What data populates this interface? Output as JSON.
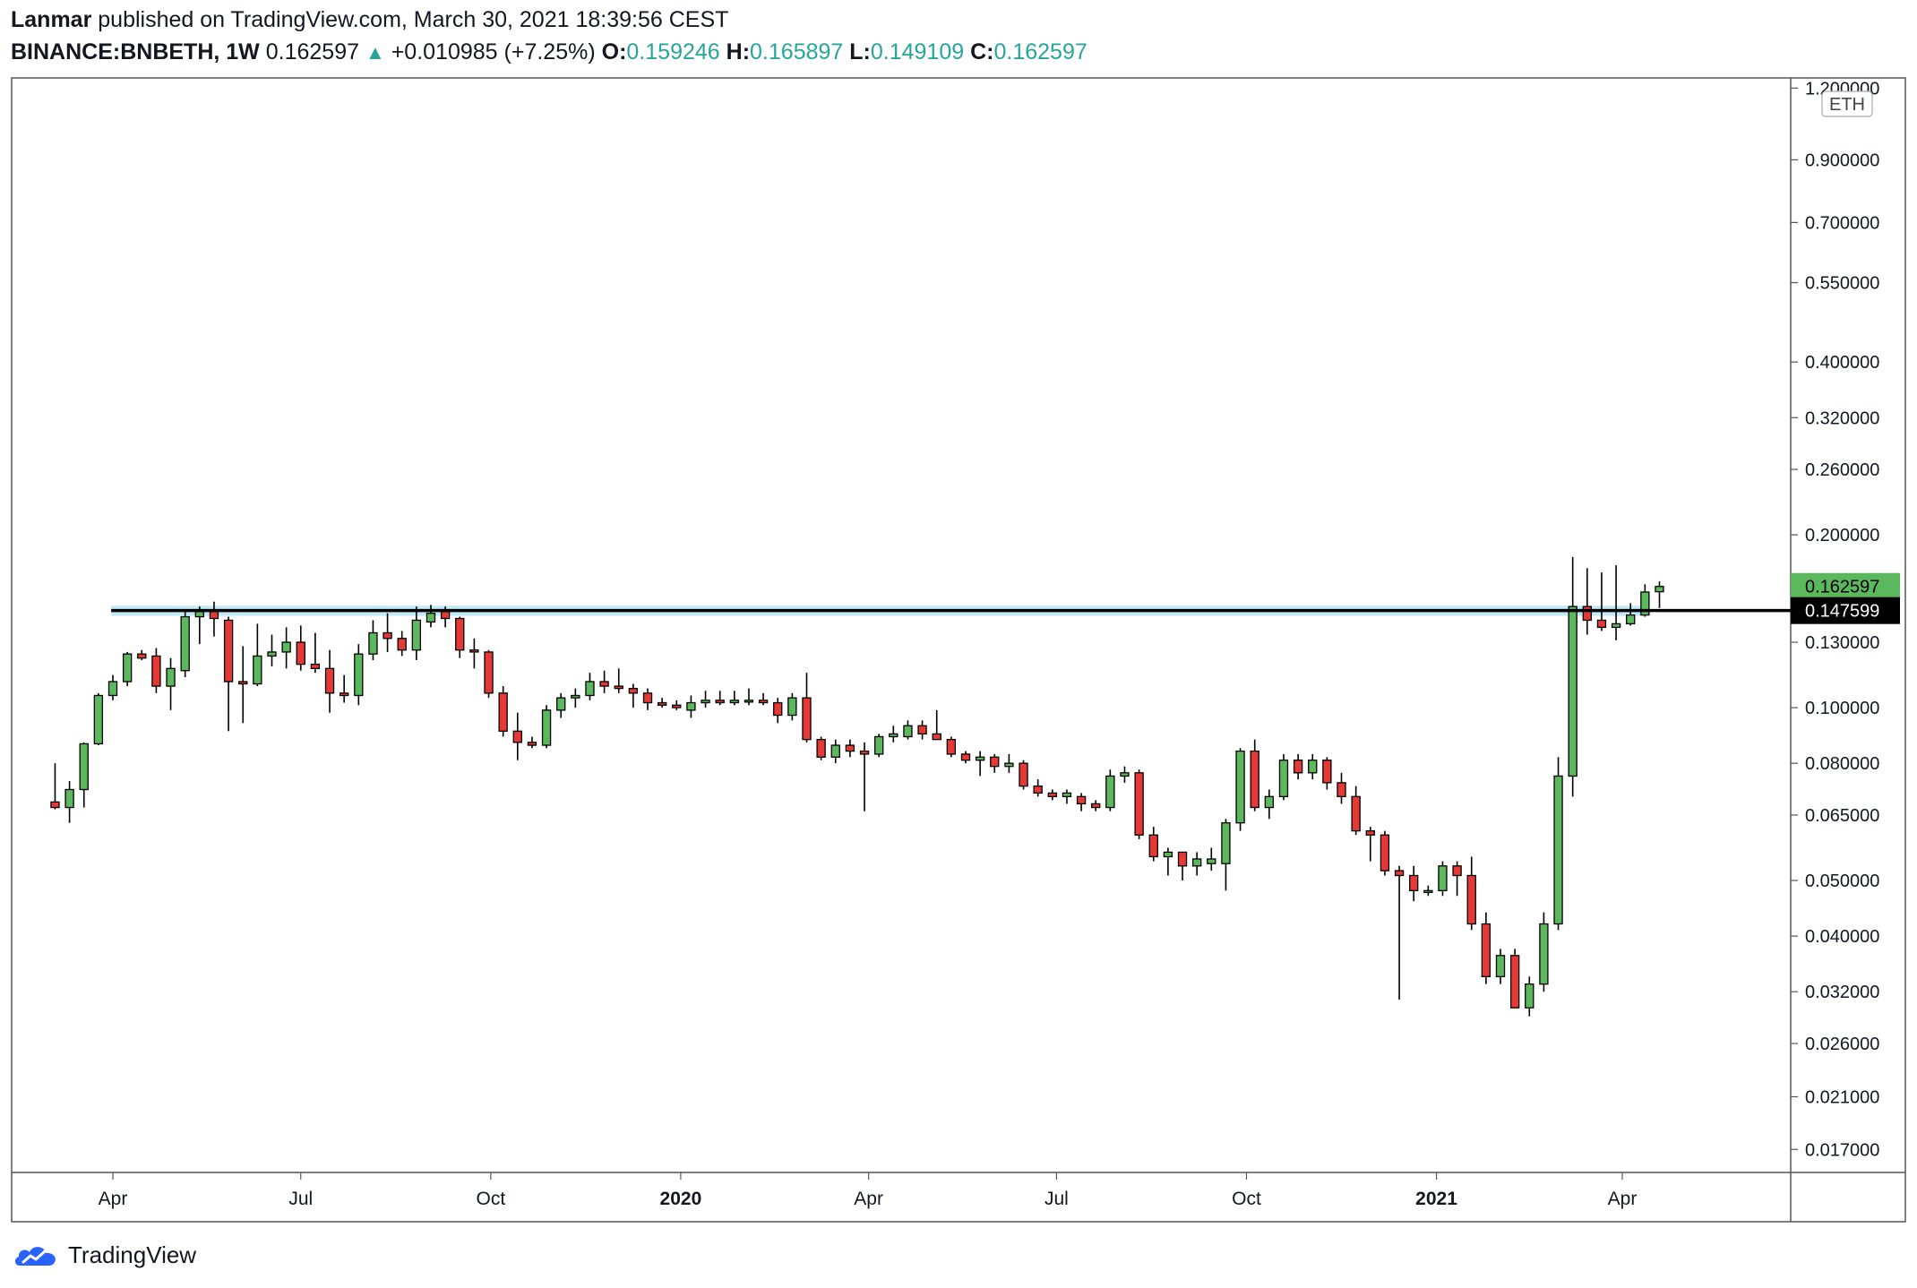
{
  "header": {
    "author": "Lanmar",
    "published_text": "published on TradingView.com, March 30, 2021 18:39:56 CEST",
    "symbol": "BINANCE:BNBETH, 1W",
    "last": "0.162597",
    "change_arrow": "▲",
    "change": "+0.010985 (+7.25%)",
    "o_label": "O:",
    "o_value": "0.159246",
    "h_label": "H:",
    "h_value": "0.165897",
    "l_label": "L:",
    "l_value": "0.149109",
    "c_label": "C:",
    "c_value": "0.162597"
  },
  "footer": {
    "brand": "TradingView",
    "logo_icon": "tradingview-cloud-icon"
  },
  "colors": {
    "up": "#5cb85c",
    "down": "#e53935",
    "wick": "#000000",
    "zone": "#b3e5f5",
    "line": "#000000",
    "last_badge": "#5cb85c",
    "line_badge": "#000000"
  },
  "chart_data": {
    "type": "candlestick",
    "title": "",
    "xlabel": "",
    "ylabel": "",
    "scale": "log",
    "currency_label": "ETH",
    "ylim": [
      0.0155,
      1.25
    ],
    "y_ticks": [
      "1.200000",
      "0.900000",
      "0.700000",
      "0.550000",
      "0.400000",
      "0.320000",
      "0.260000",
      "0.200000",
      "0.130000",
      "0.100000",
      "0.080000",
      "0.065000",
      "0.050000",
      "0.040000",
      "0.032000",
      "0.026000",
      "0.021000",
      "0.017000"
    ],
    "x_tick_labels": [
      {
        "label": "Apr",
        "date": "2019-04-01",
        "bold": false
      },
      {
        "label": "Jul",
        "date": "2019-07-01",
        "bold": false
      },
      {
        "label": "Oct",
        "date": "2019-10-01",
        "bold": false
      },
      {
        "label": "2020",
        "date": "2020-01-01",
        "bold": true
      },
      {
        "label": "Apr",
        "date": "2020-04-01",
        "bold": false
      },
      {
        "label": "Jul",
        "date": "2020-07-01",
        "bold": false
      },
      {
        "label": "Oct",
        "date": "2020-10-01",
        "bold": false
      },
      {
        "label": "2021",
        "date": "2021-01-01",
        "bold": true
      },
      {
        "label": "Apr",
        "date": "2021-04-01",
        "bold": false
      }
    ],
    "last_price_label": "0.162597",
    "horizontal_line": {
      "value": 0.147599,
      "label": "0.147599"
    },
    "support_zone": {
      "low": 0.1445,
      "high": 0.1505,
      "from": "2019-04-08",
      "to": "2021-04-12"
    },
    "candles": [
      {
        "o": 0.0685,
        "h": 0.08,
        "l": 0.0665,
        "c": 0.067
      },
      {
        "o": 0.067,
        "h": 0.0745,
        "l": 0.063,
        "c": 0.072
      },
      {
        "o": 0.072,
        "h": 0.087,
        "l": 0.067,
        "c": 0.0865
      },
      {
        "o": 0.0865,
        "h": 0.106,
        "l": 0.086,
        "c": 0.105
      },
      {
        "o": 0.105,
        "h": 0.114,
        "l": 0.103,
        "c": 0.111
      },
      {
        "o": 0.111,
        "h": 0.125,
        "l": 0.109,
        "c": 0.124
      },
      {
        "o": 0.124,
        "h": 0.126,
        "l": 0.121,
        "c": 0.122
      },
      {
        "o": 0.123,
        "h": 0.127,
        "l": 0.106,
        "c": 0.109
      },
      {
        "o": 0.109,
        "h": 0.122,
        "l": 0.099,
        "c": 0.117
      },
      {
        "o": 0.116,
        "h": 0.148,
        "l": 0.113,
        "c": 0.144
      },
      {
        "o": 0.144,
        "h": 0.15,
        "l": 0.129,
        "c": 0.147
      },
      {
        "o": 0.147,
        "h": 0.153,
        "l": 0.133,
        "c": 0.143
      },
      {
        "o": 0.142,
        "h": 0.144,
        "l": 0.091,
        "c": 0.111
      },
      {
        "o": 0.111,
        "h": 0.128,
        "l": 0.094,
        "c": 0.11
      },
      {
        "o": 0.11,
        "h": 0.14,
        "l": 0.109,
        "c": 0.123
      },
      {
        "o": 0.123,
        "h": 0.134,
        "l": 0.118,
        "c": 0.125
      },
      {
        "o": 0.125,
        "h": 0.138,
        "l": 0.117,
        "c": 0.13
      },
      {
        "o": 0.13,
        "h": 0.139,
        "l": 0.116,
        "c": 0.119
      },
      {
        "o": 0.119,
        "h": 0.135,
        "l": 0.115,
        "c": 0.117
      },
      {
        "o": 0.117,
        "h": 0.126,
        "l": 0.098,
        "c": 0.106
      },
      {
        "o": 0.106,
        "h": 0.114,
        "l": 0.102,
        "c": 0.105
      },
      {
        "o": 0.105,
        "h": 0.129,
        "l": 0.101,
        "c": 0.124
      },
      {
        "o": 0.124,
        "h": 0.142,
        "l": 0.121,
        "c": 0.135
      },
      {
        "o": 0.135,
        "h": 0.146,
        "l": 0.125,
        "c": 0.132
      },
      {
        "o": 0.132,
        "h": 0.136,
        "l": 0.123,
        "c": 0.126
      },
      {
        "o": 0.126,
        "h": 0.15,
        "l": 0.121,
        "c": 0.142
      },
      {
        "o": 0.141,
        "h": 0.151,
        "l": 0.138,
        "c": 0.146
      },
      {
        "o": 0.147,
        "h": 0.15,
        "l": 0.138,
        "c": 0.143
      },
      {
        "o": 0.143,
        "h": 0.144,
        "l": 0.122,
        "c": 0.126
      },
      {
        "o": 0.126,
        "h": 0.132,
        "l": 0.117,
        "c": 0.125
      },
      {
        "o": 0.125,
        "h": 0.126,
        "l": 0.104,
        "c": 0.106
      },
      {
        "o": 0.106,
        "h": 0.109,
        "l": 0.089,
        "c": 0.091
      },
      {
        "o": 0.091,
        "h": 0.098,
        "l": 0.081,
        "c": 0.087
      },
      {
        "o": 0.087,
        "h": 0.089,
        "l": 0.085,
        "c": 0.086
      },
      {
        "o": 0.086,
        "h": 0.101,
        "l": 0.085,
        "c": 0.099
      },
      {
        "o": 0.099,
        "h": 0.106,
        "l": 0.096,
        "c": 0.104
      },
      {
        "o": 0.104,
        "h": 0.108,
        "l": 0.1,
        "c": 0.105
      },
      {
        "o": 0.105,
        "h": 0.115,
        "l": 0.103,
        "c": 0.111
      },
      {
        "o": 0.111,
        "h": 0.116,
        "l": 0.106,
        "c": 0.109
      },
      {
        "o": 0.109,
        "h": 0.117,
        "l": 0.106,
        "c": 0.108
      },
      {
        "o": 0.108,
        "h": 0.11,
        "l": 0.1,
        "c": 0.106
      },
      {
        "o": 0.106,
        "h": 0.108,
        "l": 0.099,
        "c": 0.102
      },
      {
        "o": 0.102,
        "h": 0.104,
        "l": 0.1,
        "c": 0.101
      },
      {
        "o": 0.101,
        "h": 0.103,
        "l": 0.099,
        "c": 0.1
      },
      {
        "o": 0.099,
        "h": 0.105,
        "l": 0.096,
        "c": 0.102
      },
      {
        "o": 0.102,
        "h": 0.107,
        "l": 0.1,
        "c": 0.103
      },
      {
        "o": 0.103,
        "h": 0.107,
        "l": 0.101,
        "c": 0.102
      },
      {
        "o": 0.102,
        "h": 0.107,
        "l": 0.101,
        "c": 0.103
      },
      {
        "o": 0.103,
        "h": 0.108,
        "l": 0.101,
        "c": 0.103
      },
      {
        "o": 0.103,
        "h": 0.106,
        "l": 0.101,
        "c": 0.102
      },
      {
        "o": 0.102,
        "h": 0.104,
        "l": 0.094,
        "c": 0.097
      },
      {
        "o": 0.097,
        "h": 0.106,
        "l": 0.095,
        "c": 0.104
      },
      {
        "o": 0.104,
        "h": 0.115,
        "l": 0.087,
        "c": 0.088
      },
      {
        "o": 0.088,
        "h": 0.089,
        "l": 0.081,
        "c": 0.082
      },
      {
        "o": 0.082,
        "h": 0.088,
        "l": 0.08,
        "c": 0.086
      },
      {
        "o": 0.086,
        "h": 0.088,
        "l": 0.082,
        "c": 0.084
      },
      {
        "o": 0.084,
        "h": 0.087,
        "l": 0.066,
        "c": 0.083
      },
      {
        "o": 0.083,
        "h": 0.09,
        "l": 0.082,
        "c": 0.089
      },
      {
        "o": 0.089,
        "h": 0.093,
        "l": 0.087,
        "c": 0.09
      },
      {
        "o": 0.089,
        "h": 0.095,
        "l": 0.088,
        "c": 0.093
      },
      {
        "o": 0.093,
        "h": 0.095,
        "l": 0.088,
        "c": 0.09
      },
      {
        "o": 0.09,
        "h": 0.099,
        "l": 0.088,
        "c": 0.088
      },
      {
        "o": 0.088,
        "h": 0.089,
        "l": 0.082,
        "c": 0.083
      },
      {
        "o": 0.083,
        "h": 0.084,
        "l": 0.08,
        "c": 0.081
      },
      {
        "o": 0.081,
        "h": 0.084,
        "l": 0.076,
        "c": 0.082
      },
      {
        "o": 0.082,
        "h": 0.083,
        "l": 0.077,
        "c": 0.079
      },
      {
        "o": 0.079,
        "h": 0.083,
        "l": 0.077,
        "c": 0.08
      },
      {
        "o": 0.08,
        "h": 0.081,
        "l": 0.072,
        "c": 0.073
      },
      {
        "o": 0.073,
        "h": 0.075,
        "l": 0.07,
        "c": 0.071
      },
      {
        "o": 0.071,
        "h": 0.072,
        "l": 0.069,
        "c": 0.07
      },
      {
        "o": 0.07,
        "h": 0.072,
        "l": 0.068,
        "c": 0.071
      },
      {
        "o": 0.07,
        "h": 0.071,
        "l": 0.066,
        "c": 0.068
      },
      {
        "o": 0.068,
        "h": 0.069,
        "l": 0.066,
        "c": 0.067
      },
      {
        "o": 0.067,
        "h": 0.078,
        "l": 0.066,
        "c": 0.076
      },
      {
        "o": 0.076,
        "h": 0.079,
        "l": 0.074,
        "c": 0.077
      },
      {
        "o": 0.077,
        "h": 0.078,
        "l": 0.059,
        "c": 0.06
      },
      {
        "o": 0.06,
        "h": 0.062,
        "l": 0.054,
        "c": 0.055
      },
      {
        "o": 0.055,
        "h": 0.057,
        "l": 0.051,
        "c": 0.056
      },
      {
        "o": 0.056,
        "h": 0.056,
        "l": 0.05,
        "c": 0.053
      },
      {
        "o": 0.053,
        "h": 0.056,
        "l": 0.051,
        "c": 0.0545
      },
      {
        "o": 0.0535,
        "h": 0.057,
        "l": 0.052,
        "c": 0.0545
      },
      {
        "o": 0.0535,
        "h": 0.064,
        "l": 0.048,
        "c": 0.063
      },
      {
        "o": 0.063,
        "h": 0.085,
        "l": 0.061,
        "c": 0.084
      },
      {
        "o": 0.084,
        "h": 0.088,
        "l": 0.066,
        "c": 0.067
      },
      {
        "o": 0.067,
        "h": 0.072,
        "l": 0.064,
        "c": 0.07
      },
      {
        "o": 0.07,
        "h": 0.083,
        "l": 0.069,
        "c": 0.081
      },
      {
        "o": 0.081,
        "h": 0.083,
        "l": 0.075,
        "c": 0.077
      },
      {
        "o": 0.077,
        "h": 0.083,
        "l": 0.075,
        "c": 0.081
      },
      {
        "o": 0.081,
        "h": 0.082,
        "l": 0.072,
        "c": 0.074
      },
      {
        "o": 0.074,
        "h": 0.077,
        "l": 0.068,
        "c": 0.07
      },
      {
        "o": 0.07,
        "h": 0.073,
        "l": 0.06,
        "c": 0.061
      },
      {
        "o": 0.061,
        "h": 0.062,
        "l": 0.054,
        "c": 0.06
      },
      {
        "o": 0.06,
        "h": 0.061,
        "l": 0.051,
        "c": 0.052
      },
      {
        "o": 0.052,
        "h": 0.053,
        "l": 0.031,
        "c": 0.051
      },
      {
        "o": 0.051,
        "h": 0.053,
        "l": 0.046,
        "c": 0.048
      },
      {
        "o": 0.048,
        "h": 0.049,
        "l": 0.047,
        "c": 0.048
      },
      {
        "o": 0.048,
        "h": 0.054,
        "l": 0.047,
        "c": 0.053
      },
      {
        "o": 0.053,
        "h": 0.054,
        "l": 0.047,
        "c": 0.051
      },
      {
        "o": 0.051,
        "h": 0.055,
        "l": 0.041,
        "c": 0.042
      },
      {
        "o": 0.042,
        "h": 0.044,
        "l": 0.033,
        "c": 0.034
      },
      {
        "o": 0.034,
        "h": 0.038,
        "l": 0.033,
        "c": 0.037
      },
      {
        "o": 0.037,
        "h": 0.038,
        "l": 0.03,
        "c": 0.03
      },
      {
        "o": 0.03,
        "h": 0.034,
        "l": 0.029,
        "c": 0.033
      },
      {
        "o": 0.033,
        "h": 0.044,
        "l": 0.032,
        "c": 0.042
      },
      {
        "o": 0.042,
        "h": 0.082,
        "l": 0.041,
        "c": 0.076
      },
      {
        "o": 0.076,
        "h": 0.183,
        "l": 0.07,
        "c": 0.15
      },
      {
        "o": 0.15,
        "h": 0.175,
        "l": 0.134,
        "c": 0.142
      },
      {
        "o": 0.142,
        "h": 0.172,
        "l": 0.136,
        "c": 0.138
      },
      {
        "o": 0.138,
        "h": 0.177,
        "l": 0.131,
        "c": 0.14
      },
      {
        "o": 0.14,
        "h": 0.152,
        "l": 0.139,
        "c": 0.145
      },
      {
        "o": 0.145,
        "h": 0.164,
        "l": 0.144,
        "c": 0.159
      },
      {
        "o": 0.1592,
        "h": 0.1659,
        "l": 0.1491,
        "c": 0.1626
      }
    ]
  }
}
